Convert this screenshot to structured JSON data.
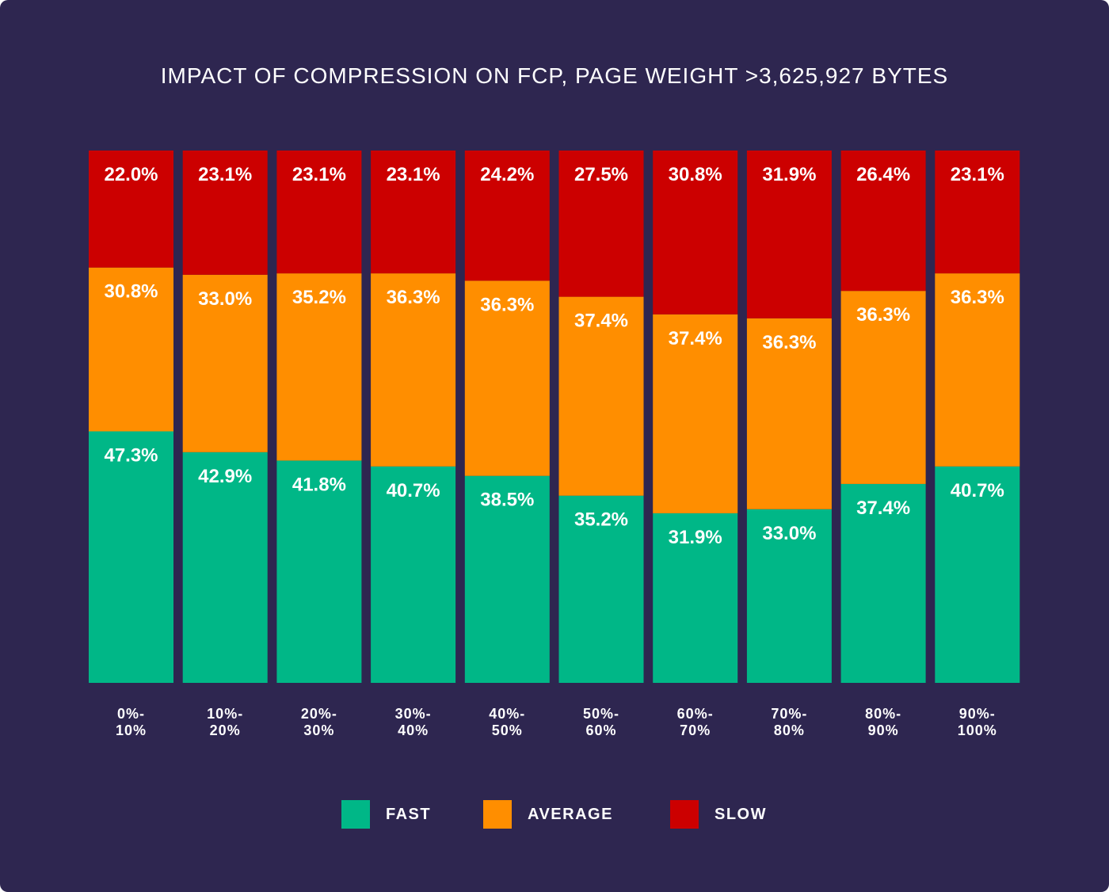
{
  "chart_data": {
    "type": "bar",
    "stacked": true,
    "title": "IMPACT OF COMPRESSION ON FCP, PAGE WEIGHT >3,625,927 BYTES",
    "categories": [
      [
        "0%-",
        "10%"
      ],
      [
        "10%-",
        "20%"
      ],
      [
        "20%-",
        "30%"
      ],
      [
        "30%-",
        "40%"
      ],
      [
        "40%-",
        "50%"
      ],
      [
        "50%-",
        "60%"
      ],
      [
        "60%-",
        "70%"
      ],
      [
        "70%-",
        "80%"
      ],
      [
        "80%-",
        "90%"
      ],
      [
        "90%-",
        "100%"
      ]
    ],
    "series": [
      {
        "name": "FAST",
        "color": "#00b787",
        "values": [
          47.3,
          42.9,
          41.8,
          40.7,
          38.5,
          35.2,
          31.9,
          33.0,
          37.4,
          40.7
        ]
      },
      {
        "name": "AVERAGE",
        "color": "#ff8e00",
        "values": [
          30.8,
          33.0,
          35.2,
          36.3,
          36.3,
          37.4,
          37.4,
          36.3,
          36.3,
          36.3
        ]
      },
      {
        "name": "SLOW",
        "color": "#cc0000",
        "values": [
          22.0,
          23.1,
          23.1,
          23.1,
          24.2,
          27.5,
          30.8,
          31.9,
          26.4,
          23.1
        ]
      }
    ],
    "value_suffix": "%",
    "legend_position": "bottom",
    "grid": false
  }
}
